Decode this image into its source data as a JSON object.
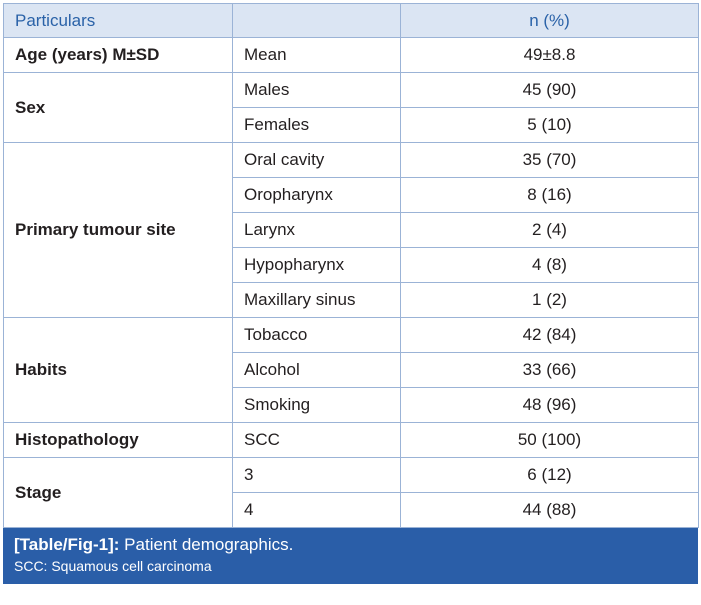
{
  "header": {
    "particulars": "Particulars",
    "sub": "",
    "n_pct": "n (%)"
  },
  "rows": {
    "age": {
      "label": "Age (years) M±SD",
      "items": [
        {
          "sub": "Mean",
          "value": "49±8.8"
        }
      ]
    },
    "sex": {
      "label": "Sex",
      "items": [
        {
          "sub": "Males",
          "value": "45 (90)"
        },
        {
          "sub": "Females",
          "value": "5 (10)"
        }
      ]
    },
    "site": {
      "label": "Primary tumour site",
      "items": [
        {
          "sub": "Oral cavity",
          "value": "35 (70)"
        },
        {
          "sub": "Oropharynx",
          "value": "8 (16)"
        },
        {
          "sub": "Larynx",
          "value": "2 (4)"
        },
        {
          "sub": "Hypopharynx",
          "value": "4 (8)"
        },
        {
          "sub": "Maxillary sinus",
          "value": "1 (2)"
        }
      ]
    },
    "habits": {
      "label": "Habits",
      "items": [
        {
          "sub": "Tobacco",
          "value": "42 (84)"
        },
        {
          "sub": "Alcohol",
          "value": "33 (66)"
        },
        {
          "sub": "Smoking",
          "value": "48 (96)"
        }
      ]
    },
    "histo": {
      "label": "Histopathology",
      "items": [
        {
          "sub": "SCC",
          "value": "50 (100)"
        }
      ]
    },
    "stage": {
      "label": "Stage",
      "items": [
        {
          "sub": "3",
          "value": "6 (12)"
        },
        {
          "sub": "4",
          "value": "44 (88)"
        }
      ]
    }
  },
  "caption": {
    "tag": "[Table/Fig-1]:",
    "title": " Patient demographics.",
    "footnote": "SCC: Squamous cell carcinoma"
  },
  "colors": {
    "header_bg": "#dbe5f3",
    "header_text": "#2a62a8",
    "border": "#9bb3d6",
    "caption_bg": "#2a5ea8"
  }
}
